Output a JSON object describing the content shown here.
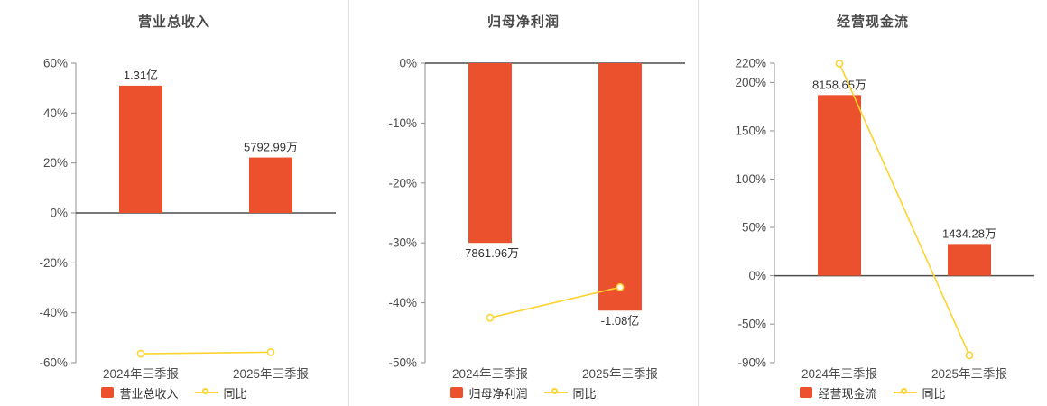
{
  "colors": {
    "bar": "#eb512c",
    "line": "#fdd32f",
    "axis": "#8c8c8c",
    "zero_line": "#4d4d4d",
    "tick_text": "#4d4d4d",
    "label_text": "#333333",
    "title_text": "#4a4a4a",
    "divider": "#e3e3e3"
  },
  "chart_data": [
    {
      "type": "bar",
      "title": "营业总收入",
      "categories": [
        "2024年三季报",
        "2025年三季报"
      ],
      "bar_series": {
        "name": "营业总收入",
        "value_labels": [
          "1.31亿",
          "5792.99万"
        ],
        "plotted_pct": [
          51,
          22.2
        ]
      },
      "line_series": {
        "name": "同比",
        "values_pct": [
          -56.4,
          -55.8
        ]
      },
      "y_axis": {
        "min": -60,
        "max": 60,
        "ticks": [
          60,
          40,
          20,
          0,
          -20,
          -40,
          -60
        ],
        "unit": "%"
      },
      "legend_position": "bottom",
      "grid": "off"
    },
    {
      "type": "bar",
      "title": "归母净利润",
      "categories": [
        "2024年三季报",
        "2025年三季报"
      ],
      "bar_series": {
        "name": "归母净利润",
        "value_labels": [
          "-7861.96万",
          "-1.08亿"
        ],
        "plotted_pct": [
          -30,
          -41.3
        ]
      },
      "line_series": {
        "name": "同比",
        "values_pct": [
          -42.5,
          -37.4
        ]
      },
      "y_axis": {
        "min": -50,
        "max": 0,
        "ticks": [
          0,
          -10,
          -20,
          -30,
          -40,
          -50
        ],
        "unit": "%"
      },
      "legend_position": "bottom",
      "grid": "off"
    },
    {
      "type": "bar",
      "title": "经营现金流",
      "categories": [
        "2024年三季报",
        "2025年三季报"
      ],
      "bar_series": {
        "name": "经营现金流",
        "value_labels": [
          "8158.65万",
          "1434.28万"
        ],
        "plotted_pct": [
          187,
          32.9
        ]
      },
      "line_series": {
        "name": "同比",
        "values_pct": [
          219.6,
          -82.4
        ]
      },
      "y_axis": {
        "min": -90,
        "max": 220,
        "ticks": [
          220,
          200,
          150,
          100,
          50,
          0,
          -50,
          -90
        ],
        "unit": "%"
      },
      "legend_position": "bottom",
      "grid": "off"
    }
  ]
}
